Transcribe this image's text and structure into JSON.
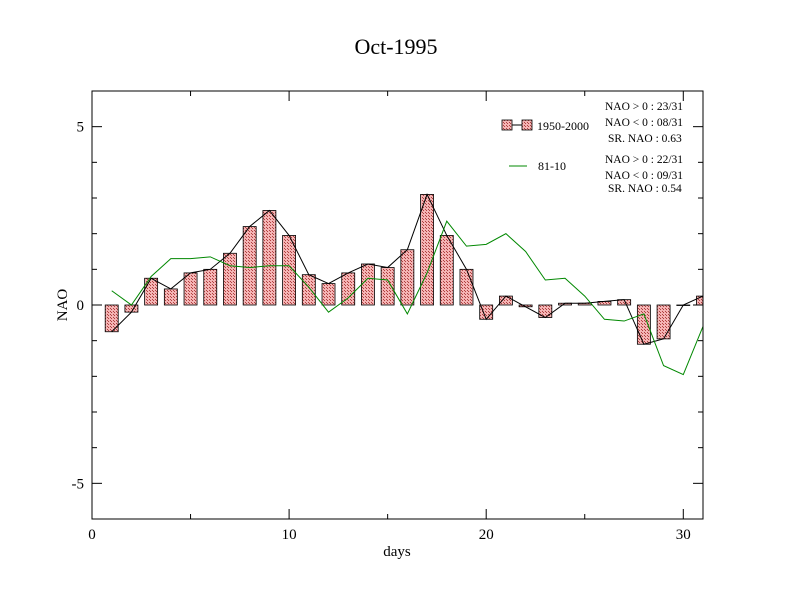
{
  "chart_data": {
    "type": "bar",
    "title": "Oct-1995",
    "xlabel": "days",
    "ylabel": "NAO",
    "xlim": [
      0,
      31
    ],
    "ylim": [
      -6,
      6
    ],
    "xticks": [
      0,
      10,
      20,
      30
    ],
    "yticks": [
      -5,
      0,
      5
    ],
    "x": [
      1,
      2,
      3,
      4,
      5,
      6,
      7,
      8,
      9,
      10,
      11,
      12,
      13,
      14,
      15,
      16,
      17,
      18,
      19,
      20,
      21,
      22,
      23,
      24,
      25,
      26,
      27,
      28,
      29,
      30,
      31
    ],
    "series": [
      {
        "name": "1950-2000",
        "style": "bars-with-line",
        "bar_color": "#e8a0a0",
        "values": [
          -0.75,
          -0.2,
          0.75,
          0.45,
          0.9,
          1.0,
          1.45,
          2.2,
          2.65,
          1.95,
          0.85,
          0.6,
          0.9,
          1.15,
          1.05,
          1.55,
          3.1,
          1.95,
          1.0,
          -0.4,
          0.25,
          -0.05,
          -0.35,
          0.05,
          0.05,
          0.1,
          0.15,
          -1.1,
          -0.95,
          0.0,
          0.25
        ]
      },
      {
        "name": "81-10",
        "style": "line",
        "color": "#008800",
        "values": [
          0.4,
          0.0,
          0.8,
          1.3,
          1.3,
          1.35,
          1.1,
          1.05,
          1.1,
          1.1,
          0.5,
          -0.2,
          0.2,
          0.75,
          0.7,
          -0.25,
          0.9,
          2.35,
          1.65,
          1.7,
          2.0,
          1.5,
          0.7,
          0.75,
          0.25,
          -0.4,
          -0.45,
          -0.25,
          -1.7,
          -1.95,
          -0.6
        ]
      }
    ],
    "legend": {
      "placement": "top-right",
      "items": [
        {
          "label": "1950-2000",
          "stats": [
            "NAO > 0 : 23/31",
            "NAO < 0 : 08/31",
            "SR. NAO :  0.63"
          ]
        },
        {
          "label": "81-10",
          "stats": [
            "NAO > 0 : 22/31",
            "NAO < 0 : 09/31",
            "SR. NAO :  0.54"
          ]
        }
      ]
    },
    "grid": false
  }
}
